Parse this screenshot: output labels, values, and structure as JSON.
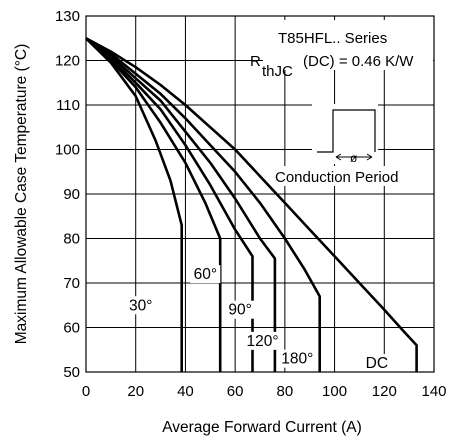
{
  "chart_data": {
    "type": "line",
    "title": "",
    "xlabel": "Average Forward Current (A)",
    "ylabel": "Maximum Allowable Case Temperature (°C)",
    "xlim": [
      0,
      140
    ],
    "ylim": [
      50,
      130
    ],
    "x_ticks": [
      0,
      20,
      40,
      60,
      80,
      100,
      120,
      140
    ],
    "y_ticks": [
      50,
      60,
      70,
      80,
      90,
      100,
      110,
      120,
      130
    ],
    "grid": true,
    "annotations": {
      "series_line": "T85HFL.. Series",
      "rth_prefix": "R",
      "rth_sub": "thJC",
      "rth_suffix": "(DC) = 0.46 K/W",
      "phi_symbol": "ø",
      "conduction_label": "Conduction Period"
    },
    "series": [
      {
        "name": "30°",
        "label": "30°",
        "points": [
          [
            0,
            125
          ],
          [
            10,
            119.5
          ],
          [
            20,
            112
          ],
          [
            28,
            102
          ],
          [
            34,
            93
          ],
          [
            38.5,
            83
          ],
          [
            38.5,
            50
          ]
        ]
      },
      {
        "name": "60°",
        "label": "60°",
        "points": [
          [
            0,
            125
          ],
          [
            10,
            120
          ],
          [
            20,
            114
          ],
          [
            30,
            106
          ],
          [
            40,
            97
          ],
          [
            48,
            88
          ],
          [
            54,
            80
          ],
          [
            54,
            50
          ]
        ]
      },
      {
        "name": "90°",
        "label": "90°",
        "points": [
          [
            0,
            125
          ],
          [
            10,
            120.5
          ],
          [
            20,
            115
          ],
          [
            30,
            109
          ],
          [
            40,
            101
          ],
          [
            50,
            92
          ],
          [
            60,
            82
          ],
          [
            67,
            76
          ],
          [
            67,
            50
          ]
        ]
      },
      {
        "name": "120°",
        "label": "120°",
        "points": [
          [
            0,
            125
          ],
          [
            10,
            121
          ],
          [
            20,
            116
          ],
          [
            30,
            111
          ],
          [
            40,
            104
          ],
          [
            50,
            97
          ],
          [
            60,
            89
          ],
          [
            70,
            80
          ],
          [
            76,
            75.5
          ],
          [
            76,
            50
          ]
        ]
      },
      {
        "name": "180°",
        "label": "180°",
        "points": [
          [
            0,
            125
          ],
          [
            10,
            121.5
          ],
          [
            20,
            117
          ],
          [
            30,
            112.5
          ],
          [
            40,
            107
          ],
          [
            50,
            101
          ],
          [
            60,
            95
          ],
          [
            70,
            88
          ],
          [
            80,
            80
          ],
          [
            88,
            73
          ],
          [
            94,
            67
          ],
          [
            94,
            50
          ]
        ]
      },
      {
        "name": "DC",
        "label": "DC",
        "points": [
          [
            0,
            125
          ],
          [
            10,
            122
          ],
          [
            20,
            118.5
          ],
          [
            30,
            114.5
          ],
          [
            40,
            110
          ],
          [
            50,
            105
          ],
          [
            60,
            100
          ],
          [
            70,
            94
          ],
          [
            80,
            88
          ],
          [
            90,
            82
          ],
          [
            100,
            76
          ],
          [
            110,
            70
          ],
          [
            120,
            64
          ],
          [
            128,
            59
          ],
          [
            133,
            56
          ],
          [
            133,
            50
          ]
        ]
      }
    ]
  }
}
